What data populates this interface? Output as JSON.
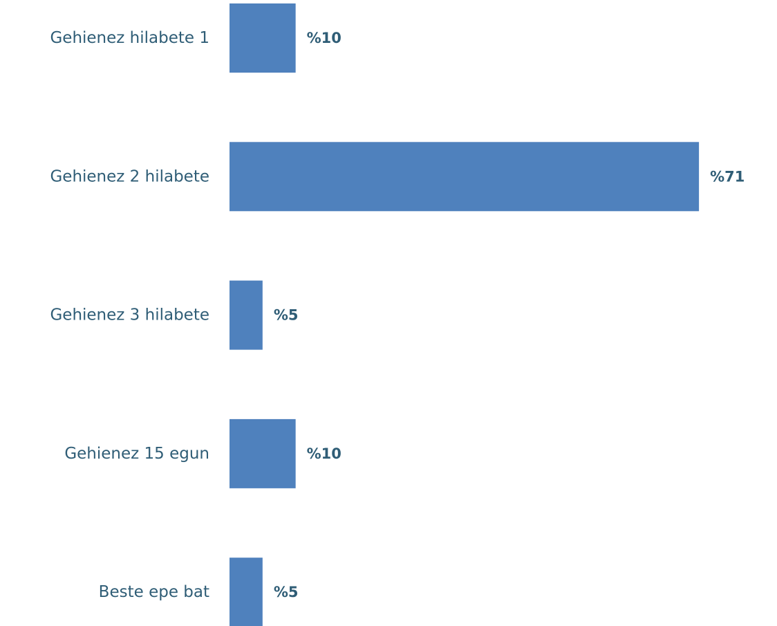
{
  "chart_data": {
    "type": "bar",
    "orientation": "horizontal",
    "categories": [
      "Gehienez hilabete 1",
      "Gehienez 2 hilabete",
      "Gehienez 3 hilabete",
      "Gehienez 15 egun",
      "Beste epe bat"
    ],
    "values": [
      10,
      71,
      5,
      10,
      5
    ],
    "value_labels": [
      "%10",
      "%71",
      "%5",
      "%10",
      "%5"
    ],
    "title": "",
    "xlabel": "",
    "ylabel": "",
    "grid": false,
    "legend": "none",
    "bar_color": "#4f81bd",
    "text_color": "#2f5d76"
  }
}
